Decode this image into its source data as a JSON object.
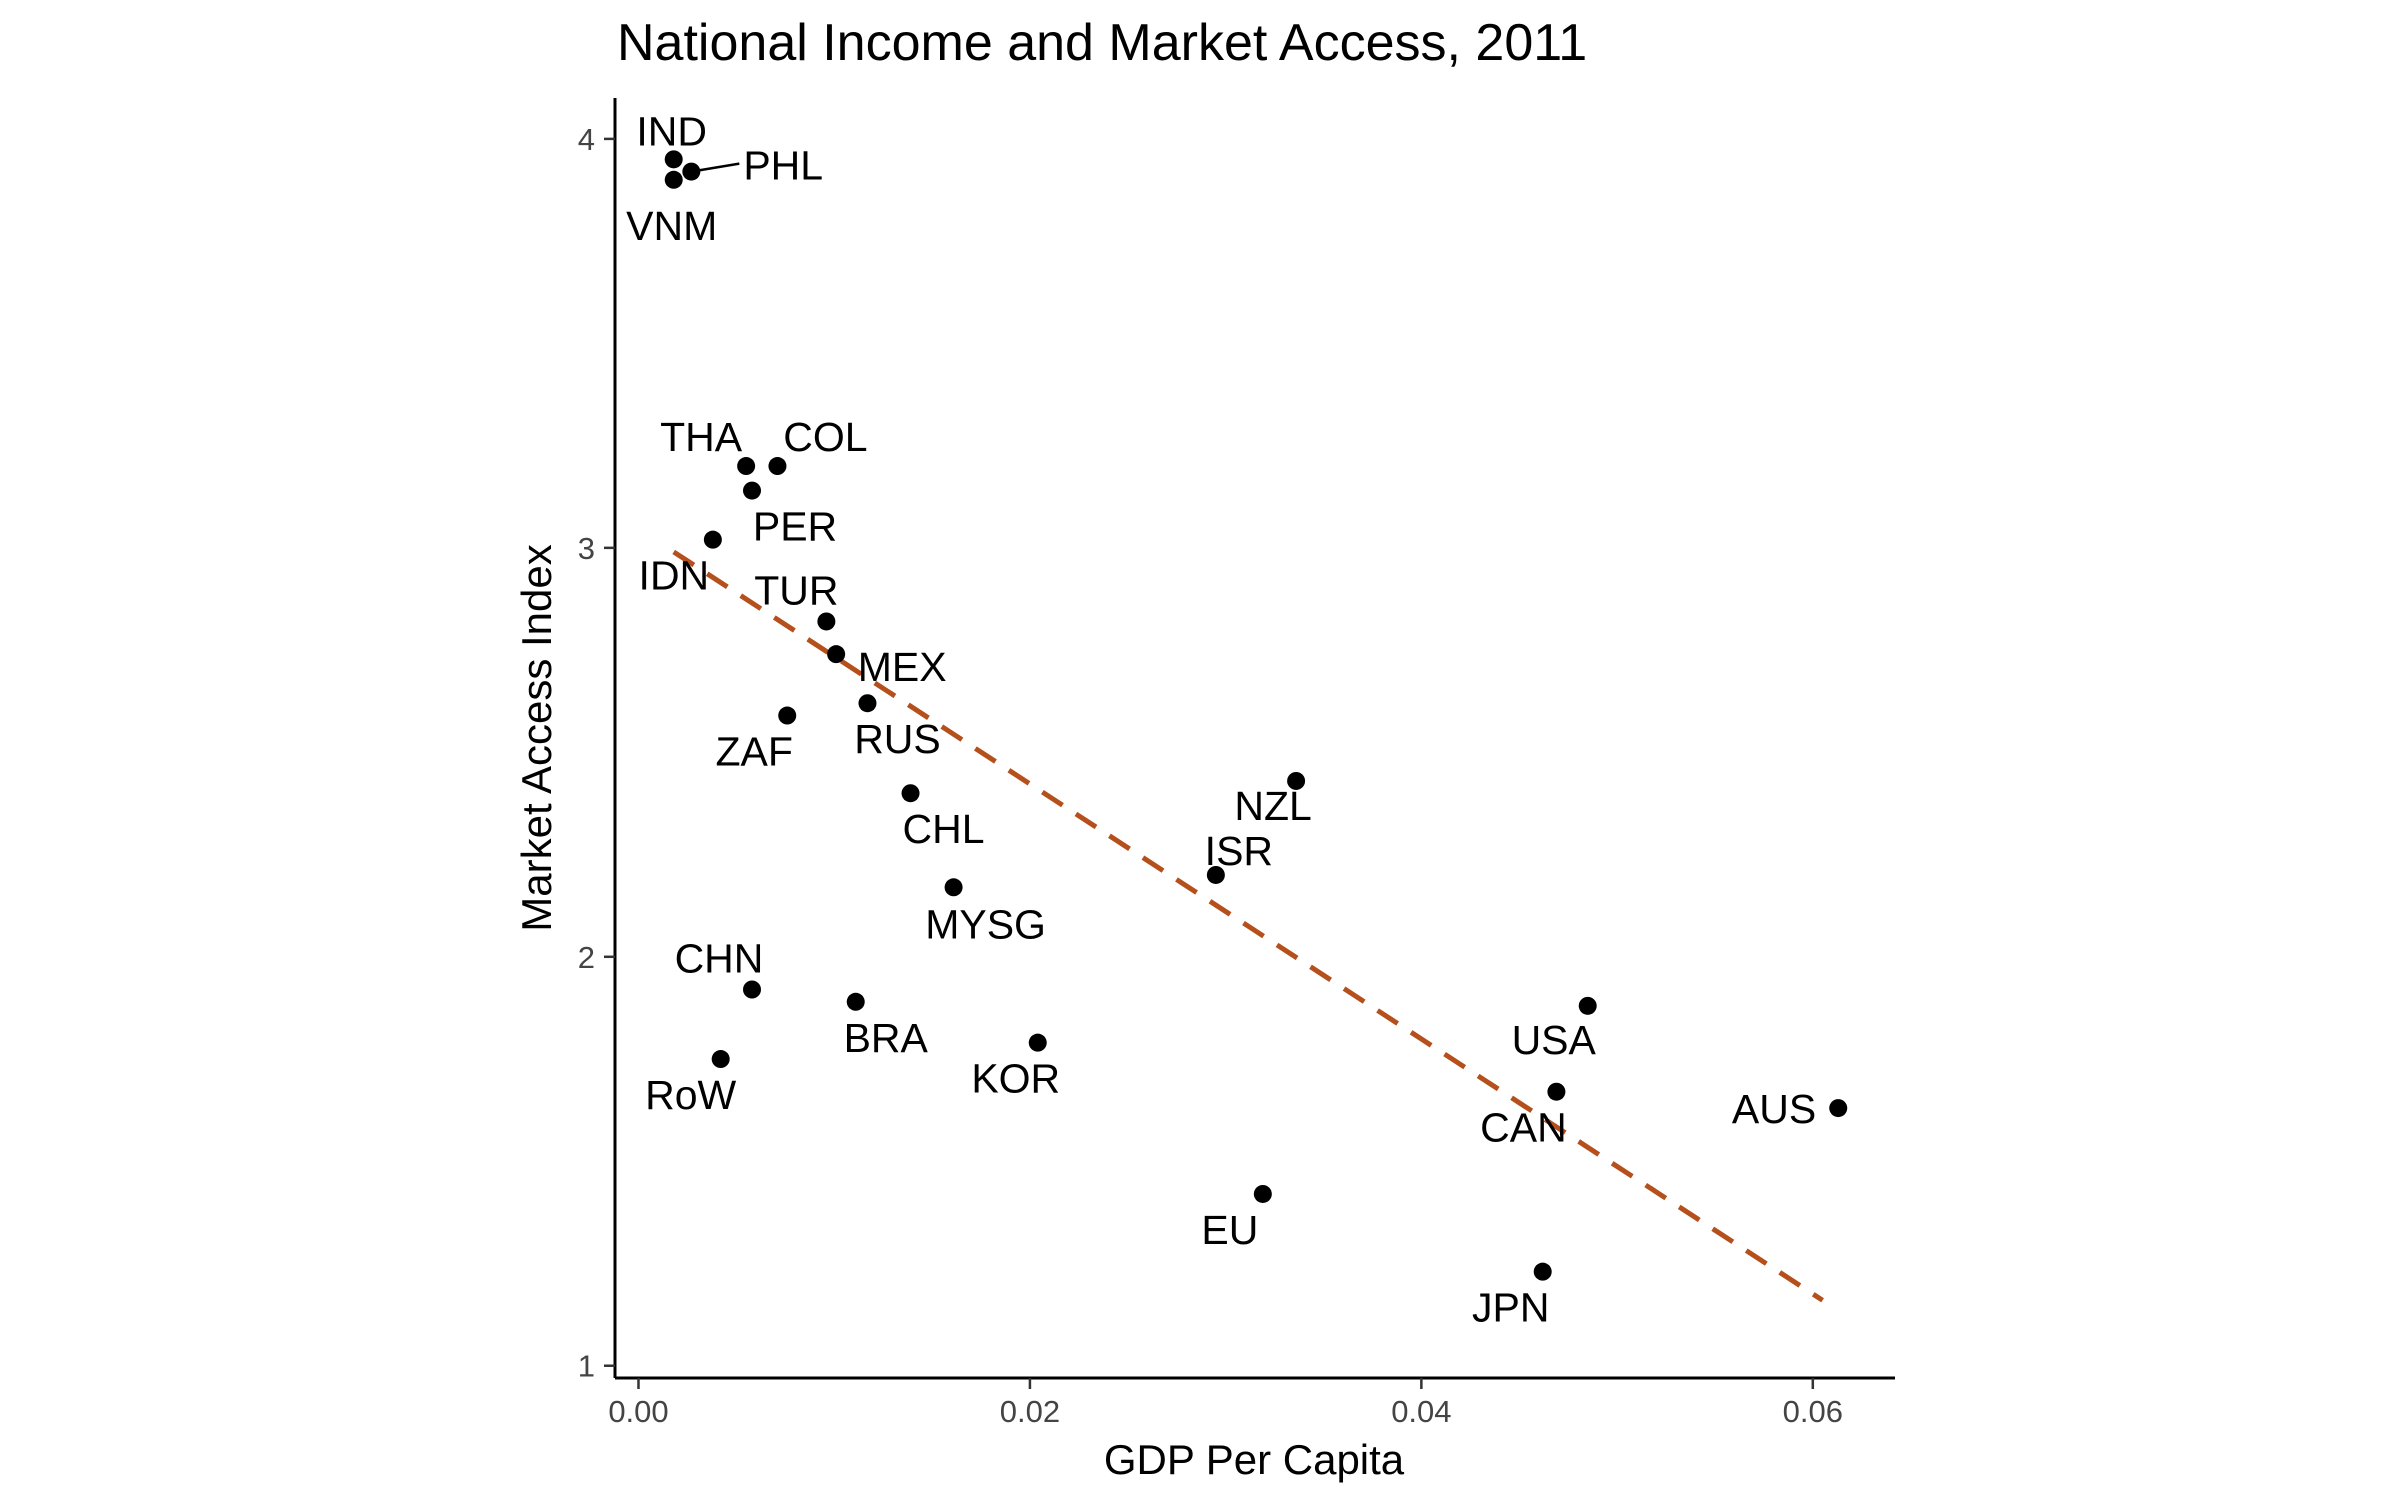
{
  "chart_data": {
    "type": "scatter",
    "title": "National Income and Market Access, 2011",
    "xlabel": "GDP Per Capita",
    "ylabel": "Market Access Index",
    "xlim": [
      -0.0012,
      0.0642
    ],
    "ylim": [
      0.97,
      4.1
    ],
    "x_ticks": [
      0.0,
      0.02,
      0.04,
      0.06
    ],
    "x_tick_labels": [
      "0.00",
      "0.02",
      "0.04",
      "0.06"
    ],
    "y_ticks": [
      1,
      2,
      3,
      4
    ],
    "y_tick_labels": [
      "1",
      "2",
      "3",
      "4"
    ],
    "grid": false,
    "points": [
      {
        "label": "IND",
        "x": 0.0018,
        "y": 3.95
      },
      {
        "label": "PHL",
        "x": 0.0027,
        "y": 3.92
      },
      {
        "label": "VNM",
        "x": 0.0018,
        "y": 3.9
      },
      {
        "label": "THA",
        "x": 0.0055,
        "y": 3.2
      },
      {
        "label": "COL",
        "x": 0.0071,
        "y": 3.2
      },
      {
        "label": "PER",
        "x": 0.0058,
        "y": 3.14
      },
      {
        "label": "IDN",
        "x": 0.0038,
        "y": 3.02
      },
      {
        "label": "TUR",
        "x": 0.0096,
        "y": 2.82
      },
      {
        "label": "MEX",
        "x": 0.0101,
        "y": 2.74
      },
      {
        "label": "RUS",
        "x": 0.0117,
        "y": 2.62
      },
      {
        "label": "ZAF",
        "x": 0.0076,
        "y": 2.59
      },
      {
        "label": "CHL",
        "x": 0.0139,
        "y": 2.4
      },
      {
        "label": "NZL",
        "x": 0.0336,
        "y": 2.43
      },
      {
        "label": "ISR",
        "x": 0.0295,
        "y": 2.2
      },
      {
        "label": "MYSG",
        "x": 0.0161,
        "y": 2.17
      },
      {
        "label": "CHN",
        "x": 0.0058,
        "y": 1.92
      },
      {
        "label": "BRA",
        "x": 0.0111,
        "y": 1.89
      },
      {
        "label": "KOR",
        "x": 0.0204,
        "y": 1.79
      },
      {
        "label": "RoW",
        "x": 0.0042,
        "y": 1.75
      },
      {
        "label": "USA",
        "x": 0.0485,
        "y": 1.88
      },
      {
        "label": "CAN",
        "x": 0.0469,
        "y": 1.67
      },
      {
        "label": "AUS",
        "x": 0.0613,
        "y": 1.63
      },
      {
        "label": "EU",
        "x": 0.0319,
        "y": 1.42
      },
      {
        "label": "JPN",
        "x": 0.0462,
        "y": 1.23
      }
    ],
    "trend_line": {
      "type": "linear fit",
      "x": [
        0.0018,
        0.0605
      ],
      "y": [
        2.99,
        1.16
      ]
    },
    "colors": {
      "points": "#000000",
      "trend_line": "#b5501c",
      "axis": "#000000",
      "tick_label": "#444444"
    }
  }
}
